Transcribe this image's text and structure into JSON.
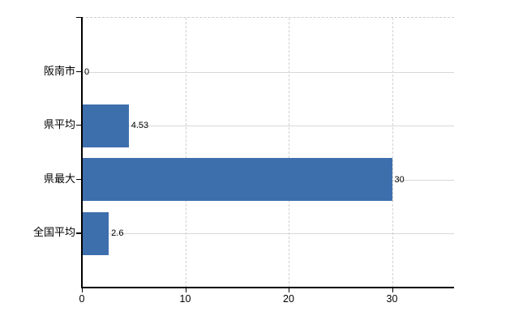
{
  "chart_data": {
    "type": "bar",
    "orientation": "horizontal",
    "title": "",
    "categories": [
      "阪南市",
      "県平均",
      "県最大",
      "全国平均"
    ],
    "values": [
      0,
      4.53,
      30,
      2.6
    ],
    "value_labels": [
      "0",
      "4.53",
      "30",
      "2.6"
    ],
    "x_ticks": [
      0,
      10,
      20,
      30
    ],
    "x_tick_labels": [
      "0",
      "10",
      "20",
      "30"
    ],
    "xlim": [
      0,
      36
    ],
    "grid": true,
    "legend": false,
    "bar_color": "#3E6FAD",
    "hgrid_color": "#d6d9d4",
    "vgrid_style": "dashed",
    "axis_color": "#000000",
    "text_color": "#000000"
  }
}
